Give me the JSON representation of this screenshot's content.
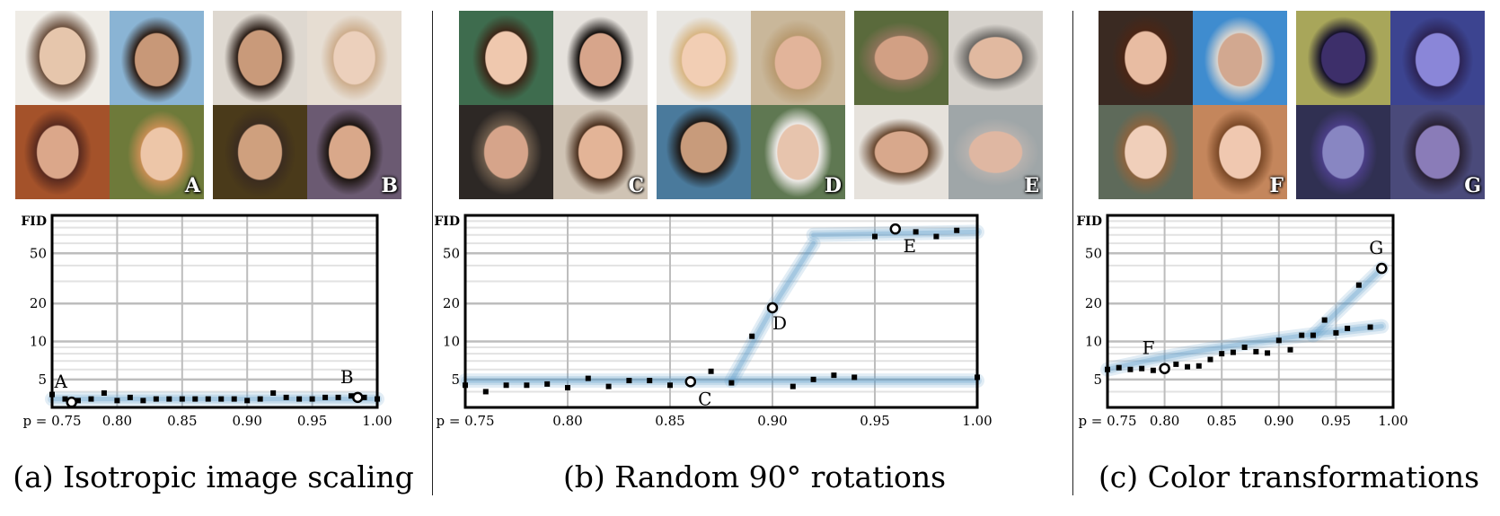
{
  "chart_data": [
    {
      "type": "scatter",
      "title": "(a) Isotropic image scaling",
      "ylabel": "FID",
      "y_scale": "log",
      "xlim": [
        0.75,
        1.0
      ],
      "ylim": [
        3,
        100
      ],
      "x_ticks": [
        "p = 0.75",
        "0.80",
        "0.85",
        "0.90",
        "0.95",
        "1.00"
      ],
      "y_ticks": [
        "5",
        "10",
        "20",
        "50"
      ],
      "series": [
        {
          "x": [
            0.75,
            0.76,
            0.77,
            0.78,
            0.79,
            0.8,
            0.81,
            0.82,
            0.83,
            0.84,
            0.85,
            0.86,
            0.87,
            0.88,
            0.89,
            0.9,
            0.91,
            0.92,
            0.93,
            0.94,
            0.95,
            0.96,
            0.97,
            0.98,
            0.99,
            1.0
          ],
          "values": [
            3.8,
            3.5,
            3.4,
            3.5,
            3.9,
            3.4,
            3.6,
            3.4,
            3.5,
            3.5,
            3.5,
            3.5,
            3.5,
            3.5,
            3.5,
            3.4,
            3.5,
            3.9,
            3.6,
            3.5,
            3.5,
            3.6,
            3.6,
            3.7,
            3.6,
            3.5
          ]
        }
      ],
      "annotations": [
        {
          "label": "A",
          "x": 0.765,
          "y": 3.3
        },
        {
          "label": "B",
          "x": 0.985,
          "y": 3.6
        }
      ],
      "images": [
        {
          "label": "A"
        },
        {
          "label": "B"
        }
      ]
    },
    {
      "type": "scatter",
      "title": "(b) Random 90° rotations",
      "ylabel": "FID",
      "y_scale": "log",
      "xlim": [
        0.75,
        1.0
      ],
      "ylim": [
        3,
        100
      ],
      "x_ticks": [
        "p = 0.75",
        "0.80",
        "0.85",
        "0.90",
        "0.95",
        "1.00"
      ],
      "y_ticks": [
        "5",
        "10",
        "20",
        "50"
      ],
      "series": [
        {
          "x": [
            0.75,
            0.76,
            0.77,
            0.78,
            0.79,
            0.8,
            0.81,
            0.82,
            0.83,
            0.84,
            0.85,
            0.86,
            0.87,
            0.88,
            0.89,
            0.9,
            0.91,
            0.92,
            0.93,
            0.94,
            0.95,
            0.96,
            0.97,
            0.98,
            0.99,
            1.0
          ],
          "values": [
            4.5,
            4.0,
            4.5,
            4.5,
            4.6,
            4.3,
            5.1,
            4.4,
            4.9,
            4.9,
            4.5,
            4.8,
            5.8,
            4.7,
            11.0,
            18.5,
            4.4,
            5.0,
            5.4,
            5.2,
            68,
            78,
            74,
            68,
            76,
            5.2
          ]
        }
      ],
      "annotations": [
        {
          "label": "C",
          "x": 0.86,
          "y": 4.8
        },
        {
          "label": "D",
          "x": 0.9,
          "y": 18.5
        },
        {
          "label": "E",
          "x": 0.96,
          "y": 78
        }
      ],
      "images": [
        {
          "label": "C"
        },
        {
          "label": "D"
        },
        {
          "label": "E"
        }
      ]
    },
    {
      "type": "scatter",
      "title": "(c) Color transformations",
      "ylabel": "FID",
      "y_scale": "log",
      "xlim": [
        0.75,
        1.0
      ],
      "ylim": [
        3,
        100
      ],
      "x_ticks": [
        "p = 0.75",
        "0.80",
        "0.85",
        "0.90",
        "0.95",
        "1.00"
      ],
      "y_ticks": [
        "5",
        "10",
        "20",
        "50"
      ],
      "series": [
        {
          "x": [
            0.75,
            0.76,
            0.77,
            0.78,
            0.79,
            0.8,
            0.81,
            0.82,
            0.83,
            0.84,
            0.85,
            0.86,
            0.87,
            0.88,
            0.89,
            0.9,
            0.91,
            0.92,
            0.93,
            0.94,
            0.95,
            0.96,
            0.97,
            0.98,
            0.99
          ],
          "values": [
            6.0,
            6.2,
            6.0,
            6.1,
            5.9,
            6.1,
            6.6,
            6.3,
            6.4,
            7.2,
            8.0,
            8.2,
            9.0,
            8.3,
            8.1,
            10.2,
            8.6,
            11.2,
            11.2,
            14.8,
            11.7,
            12.7,
            28,
            13.0,
            38
          ]
        }
      ],
      "annotations": [
        {
          "label": "F",
          "x": 0.8,
          "y": 6.1
        },
        {
          "label": "G",
          "x": 0.99,
          "y": 38
        }
      ],
      "images": [
        {
          "label": "F"
        },
        {
          "label": "G"
        }
      ]
    }
  ]
}
